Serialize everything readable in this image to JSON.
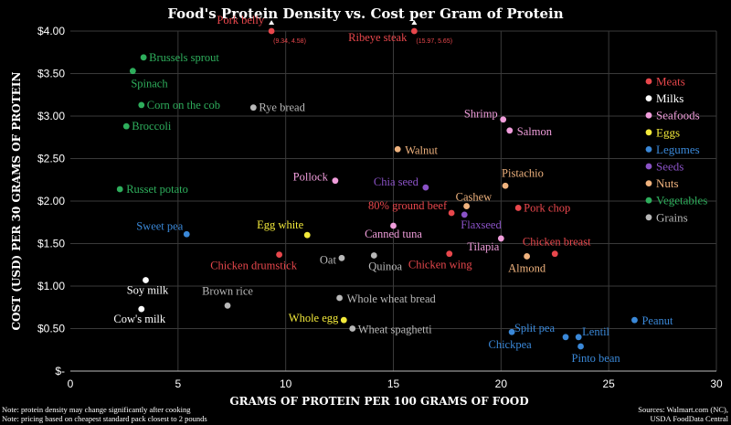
{
  "chart_data": {
    "type": "scatter",
    "title": "Food's Protein Density vs. Cost per Gram of Protein",
    "xlabel": "GRAMS OF PROTEIN PER 100 GRAMS OF FOOD",
    "ylabel": "COST (USD) PER 30 GRAMS OF PROTEIN",
    "xlim": [
      0,
      30
    ],
    "ylim": [
      0,
      4
    ],
    "x_ticks": [
      "0",
      "5",
      "10",
      "15",
      "20",
      "25",
      "30"
    ],
    "y_ticks": [
      "$-",
      "$0.50",
      "$1.00",
      "$1.50",
      "$2.00",
      "$2.50",
      "$3.00",
      "$3.50",
      "$4.00"
    ],
    "grid": true,
    "legend_position": "right",
    "categories": [
      {
        "name": "Meats",
        "color": "#e8474c"
      },
      {
        "name": "Milks",
        "color": "#ffffff"
      },
      {
        "name": "Seafoods",
        "color": "#f09ddb"
      },
      {
        "name": "Eggs",
        "color": "#f3ea3b"
      },
      {
        "name": "Legumes",
        "color": "#3a88d8"
      },
      {
        "name": "Seeds",
        "color": "#8a52c6"
      },
      {
        "name": "Nuts",
        "color": "#f0b37e"
      },
      {
        "name": "Vegetables",
        "color": "#2eae5c"
      },
      {
        "name": "Grains",
        "color": "#b8b8b8"
      }
    ],
    "points": [
      {
        "label": "Pork belly",
        "category": "Meats",
        "x": 9.34,
        "y": 4.0,
        "actual_y": 4.58,
        "annotation": "(9.34, 4.58)"
      },
      {
        "label": "Ribeye steak",
        "category": "Meats",
        "x": 15.97,
        "y": 4.0,
        "actual_y": 5.65,
        "annotation": "(15.97, 5.65)"
      },
      {
        "label": "Brussels sprout",
        "category": "Vegetables",
        "x": 3.4,
        "y": 3.69
      },
      {
        "label": "Spinach",
        "category": "Vegetables",
        "x": 2.9,
        "y": 3.53
      },
      {
        "label": "Corn on the cob",
        "category": "Vegetables",
        "x": 3.3,
        "y": 3.13
      },
      {
        "label": "Broccoli",
        "category": "Vegetables",
        "x": 2.6,
        "y": 2.88
      },
      {
        "label": "Russet potato",
        "category": "Vegetables",
        "x": 2.3,
        "y": 2.14
      },
      {
        "label": "Rye bread",
        "category": "Grains",
        "x": 8.5,
        "y": 3.1
      },
      {
        "label": "Shrimp",
        "category": "Seafoods",
        "x": 20.1,
        "y": 2.96
      },
      {
        "label": "Salmon",
        "category": "Seafoods",
        "x": 20.4,
        "y": 2.83
      },
      {
        "label": "Walnut",
        "category": "Nuts",
        "x": 15.2,
        "y": 2.61
      },
      {
        "label": "Pollock",
        "category": "Seafoods",
        "x": 12.3,
        "y": 2.24
      },
      {
        "label": "Chia seed",
        "category": "Seeds",
        "x": 16.5,
        "y": 2.16
      },
      {
        "label": "Pistachio",
        "category": "Nuts",
        "x": 20.2,
        "y": 2.18
      },
      {
        "label": "Cashew",
        "category": "Nuts",
        "x": 18.4,
        "y": 1.94
      },
      {
        "label": "80% ground beef",
        "category": "Meats",
        "x": 17.7,
        "y": 1.86
      },
      {
        "label": "Pork chop",
        "category": "Meats",
        "x": 20.8,
        "y": 1.92
      },
      {
        "label": "Flaxseed",
        "category": "Seeds",
        "x": 18.3,
        "y": 1.84
      },
      {
        "label": "Sweet pea",
        "category": "Legumes",
        "x": 5.4,
        "y": 1.61
      },
      {
        "label": "Egg white",
        "category": "Eggs",
        "x": 11.0,
        "y": 1.6
      },
      {
        "label": "Canned tuna",
        "category": "Seafoods",
        "x": 15.0,
        "y": 1.71
      },
      {
        "label": "Tilapia",
        "category": "Seafoods",
        "x": 20.0,
        "y": 1.56
      },
      {
        "label": "Chicken breast",
        "category": "Meats",
        "x": 22.5,
        "y": 1.38
      },
      {
        "label": "Chicken drumstick",
        "category": "Meats",
        "x": 9.7,
        "y": 1.37
      },
      {
        "label": "Oat",
        "category": "Grains",
        "x": 12.6,
        "y": 1.33
      },
      {
        "label": "Quinoa",
        "category": "Grains",
        "x": 14.1,
        "y": 1.36
      },
      {
        "label": "Chicken wing",
        "category": "Meats",
        "x": 17.6,
        "y": 1.38
      },
      {
        "label": "Almond",
        "category": "Nuts",
        "x": 21.2,
        "y": 1.35
      },
      {
        "label": "Soy milk",
        "category": "Milks",
        "x": 3.5,
        "y": 1.07
      },
      {
        "label": "Brown rice",
        "category": "Grains",
        "x": 7.3,
        "y": 0.77
      },
      {
        "label": "Whole wheat bread",
        "category": "Grains",
        "x": 12.5,
        "y": 0.86
      },
      {
        "label": "Cow's milk",
        "category": "Milks",
        "x": 3.3,
        "y": 0.73
      },
      {
        "label": "Whole egg",
        "category": "Eggs",
        "x": 12.7,
        "y": 0.6
      },
      {
        "label": "Wheat spaghetti",
        "category": "Grains",
        "x": 13.1,
        "y": 0.5
      },
      {
        "label": "Chickpea",
        "category": "Legumes",
        "x": 20.5,
        "y": 0.46
      },
      {
        "label": "Split pea",
        "category": "Legumes",
        "x": 23.0,
        "y": 0.4
      },
      {
        "label": "Lentil",
        "category": "Legumes",
        "x": 23.6,
        "y": 0.4
      },
      {
        "label": "Pinto bean",
        "category": "Legumes",
        "x": 23.7,
        "y": 0.29
      },
      {
        "label": "Peanut",
        "category": "Legumes",
        "x": 26.2,
        "y": 0.6
      }
    ],
    "notes": [
      "Note: protein density may change significantly after cooking",
      "Note: pricing based on cheapest standard pack closest to 2 pounds"
    ],
    "sources": [
      "Sources: Walmart.com (NC),",
      "USDA FoodData Central"
    ]
  }
}
